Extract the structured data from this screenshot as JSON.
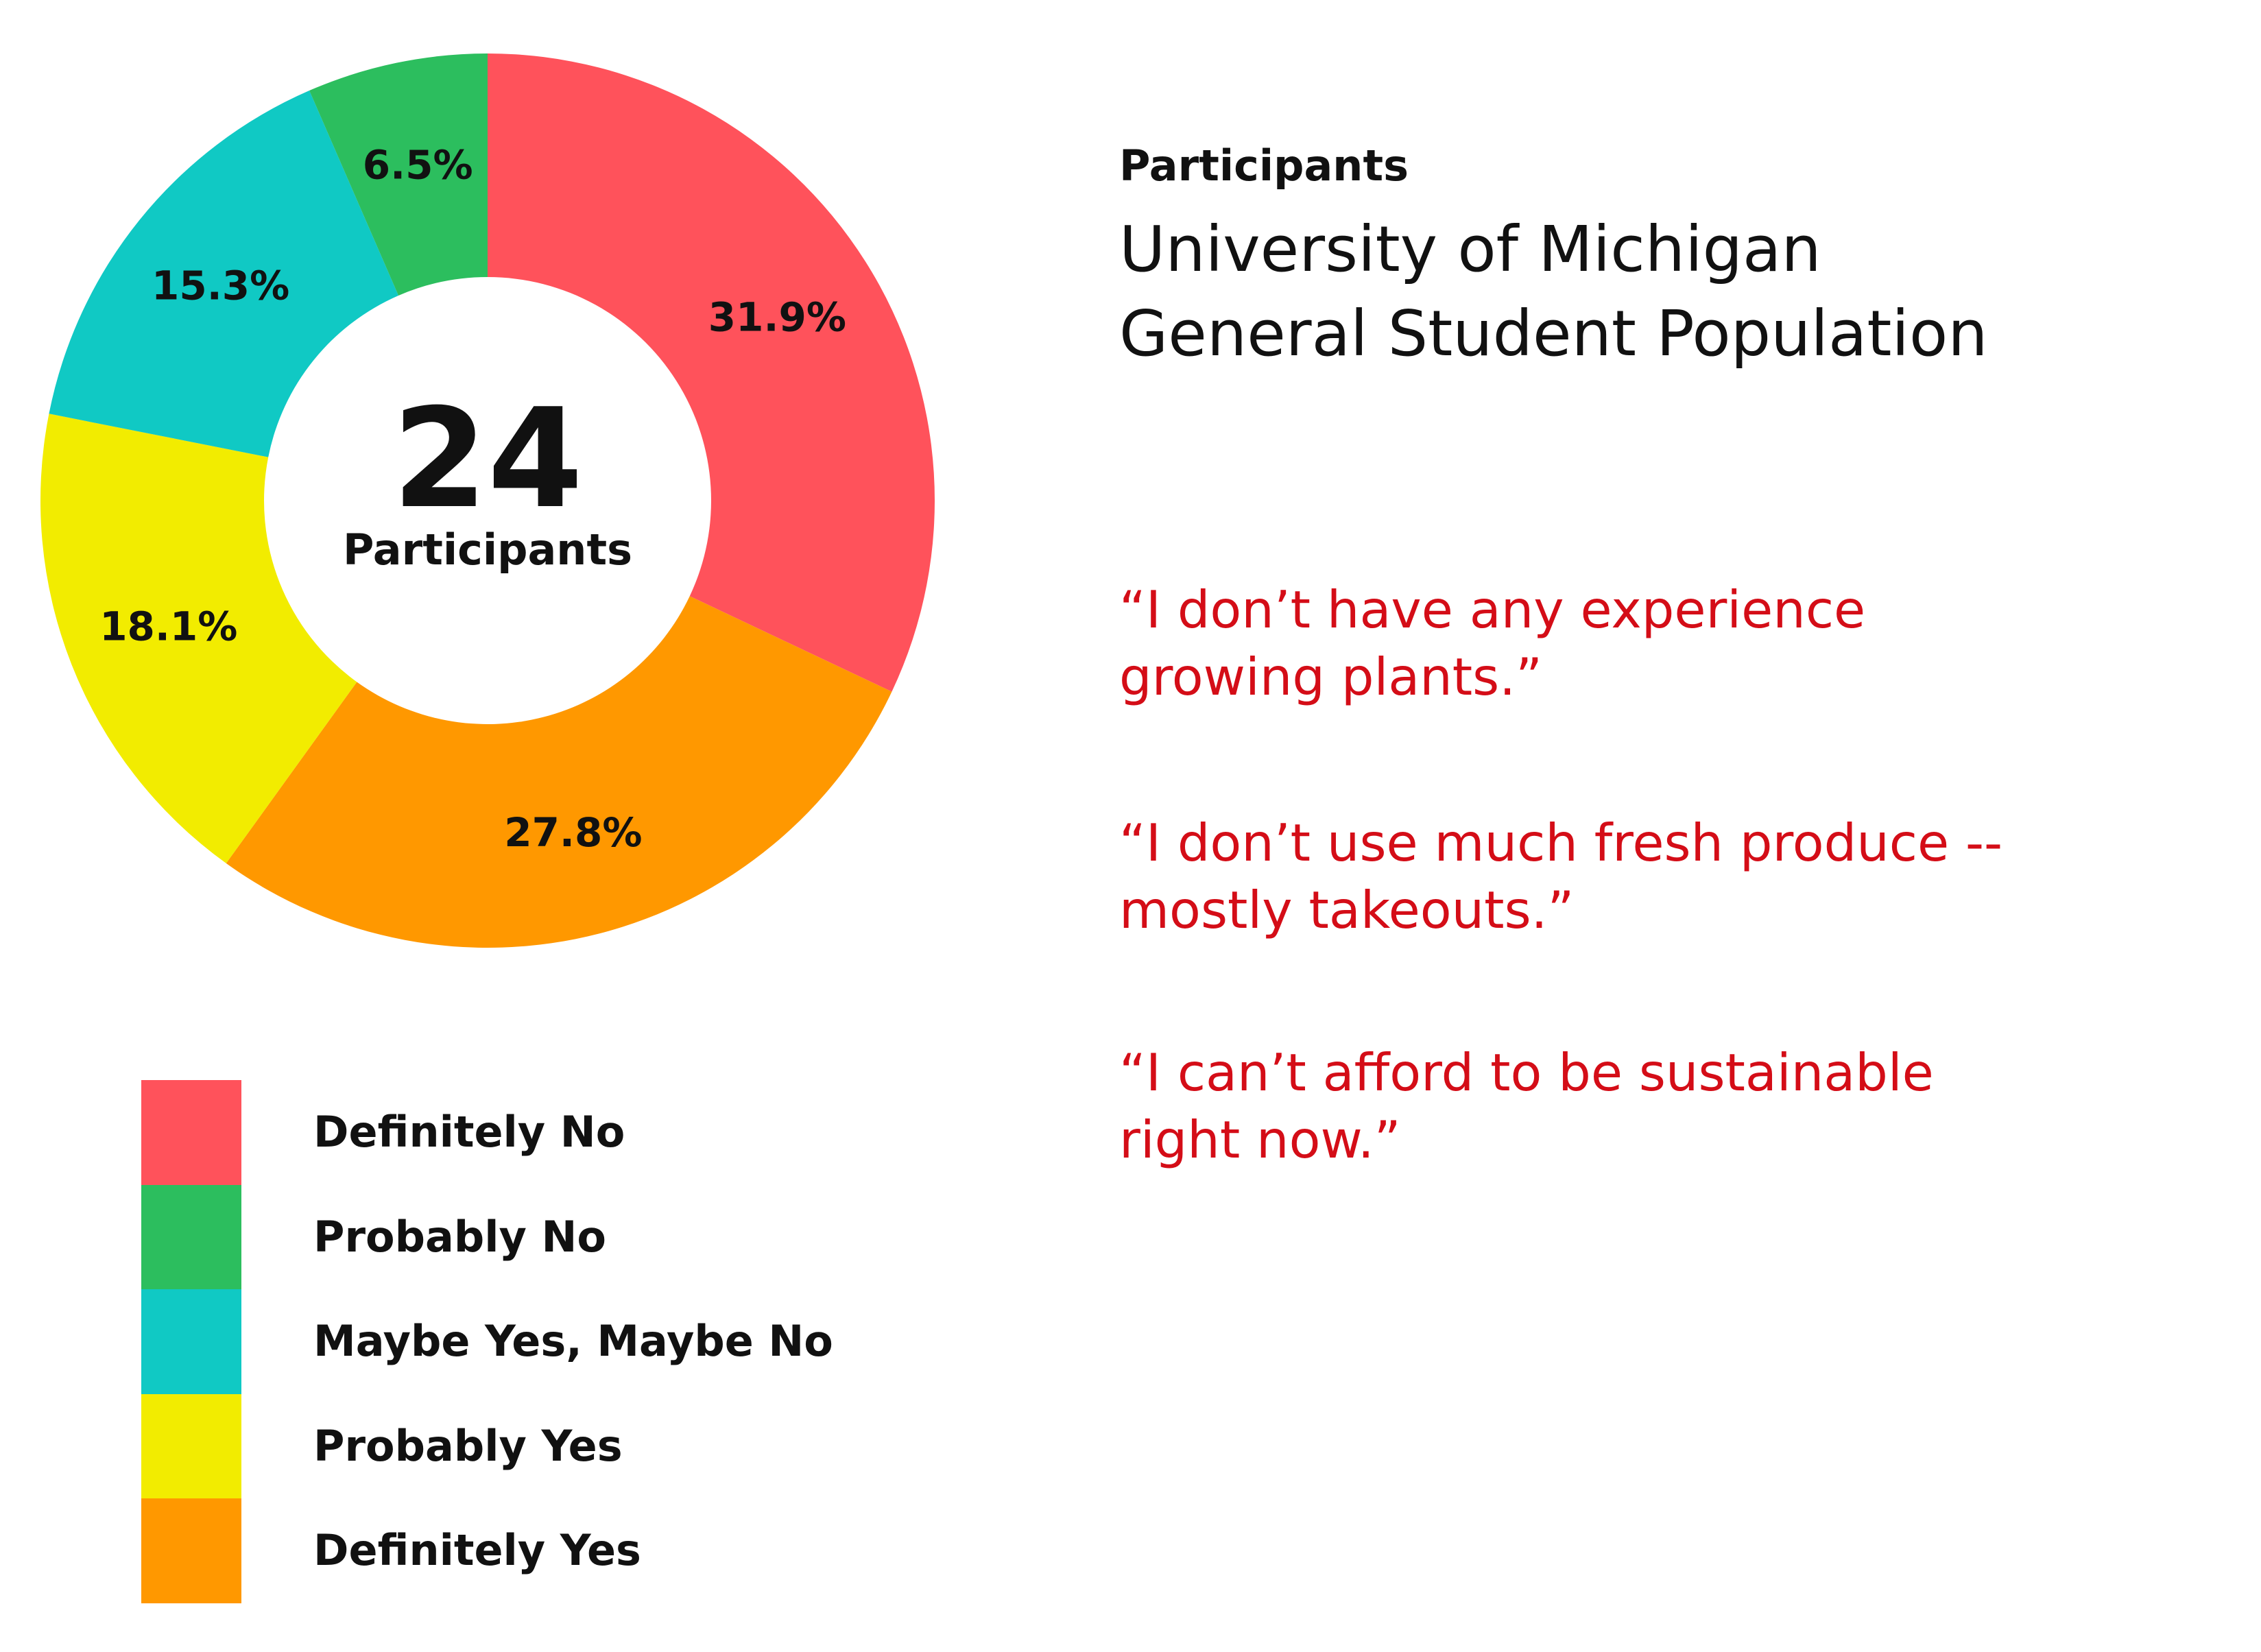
{
  "chart_data": {
    "type": "pie",
    "variant": "donut",
    "categories": [
      "Definitely No",
      "Definitely Yes",
      "Probably Yes",
      "Maybe Yes, Maybe No",
      "Probably No"
    ],
    "values": [
      31.9,
      27.8,
      18.1,
      15.3,
      6.5
    ],
    "value_labels": [
      "31.9%",
      "27.8%",
      "18.1%",
      "15.3%",
      "6.5%"
    ],
    "colors": [
      "#ff525b",
      "#ff9800",
      "#f2ec00",
      "#10c9c4",
      "#2cbe5e"
    ],
    "start": "12 o'clock, clockwise",
    "center_number": "24",
    "center_label": "Participants",
    "legend_position": "bottom-left"
  },
  "legend": [
    {
      "label": "Definitely No",
      "color": "#ff525b"
    },
    {
      "label": "Probably No",
      "color": "#2cbe5e"
    },
    {
      "label": "Maybe Yes, Maybe No",
      "color": "#10c9c4"
    },
    {
      "label": "Probably Yes",
      "color": "#f2ec00"
    },
    {
      "label": "Definitely Yes",
      "color": "#ff9800"
    }
  ],
  "info": {
    "heading": "Participants",
    "title_lines": [
      "University of Michigan",
      "General Student Population"
    ]
  },
  "quotes": [
    [
      "“I don’t have any experience",
      "growing plants.”"
    ],
    [
      "“I don’t use much fresh produce --",
      "mostly takeouts.”"
    ],
    [
      "“I can’t afford to be sustainable",
      "right now.”"
    ]
  ],
  "quote_color": "#d40d17"
}
